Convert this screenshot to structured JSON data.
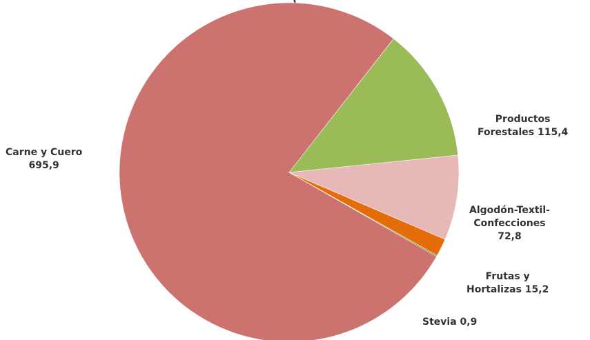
{
  "chart_data": {
    "type": "pie",
    "title": "",
    "title_partial": "(",
    "legend": "none",
    "slices": [
      {
        "label": "Carne y Cuero",
        "value_text": "695,9",
        "value": 695.9,
        "color": "#cc7370"
      },
      {
        "label": "Productos Forestales",
        "value_text": "115,4",
        "value": 115.4,
        "color": "#9bbb59"
      },
      {
        "label": "Algodón-Textil-Confecciones",
        "value_text": "72,8",
        "value": 72.8,
        "color": "#e6b9b8"
      },
      {
        "label": "Frutas y Hortalizas",
        "value_text": "15,2",
        "value": 15.2,
        "color": "#e46c0a"
      },
      {
        "label": "Stevia",
        "value_text": "0,9",
        "value": 0.9,
        "color": "#4f8a10"
      }
    ]
  },
  "labels": {
    "carne": {
      "line1": "Carne y Cuero",
      "line2": "695,9"
    },
    "forestales": {
      "line1": "Productos",
      "line2": "Forestales 115,4"
    },
    "algodon": {
      "line1": "Algodón-Textil-",
      "line2": "Confecciones",
      "line3": "72,8"
    },
    "frutas": {
      "line1": "Frutas y",
      "line2": "Hortalizas 15,2"
    },
    "stevia": {
      "line1": "Stevia 0,9"
    }
  }
}
